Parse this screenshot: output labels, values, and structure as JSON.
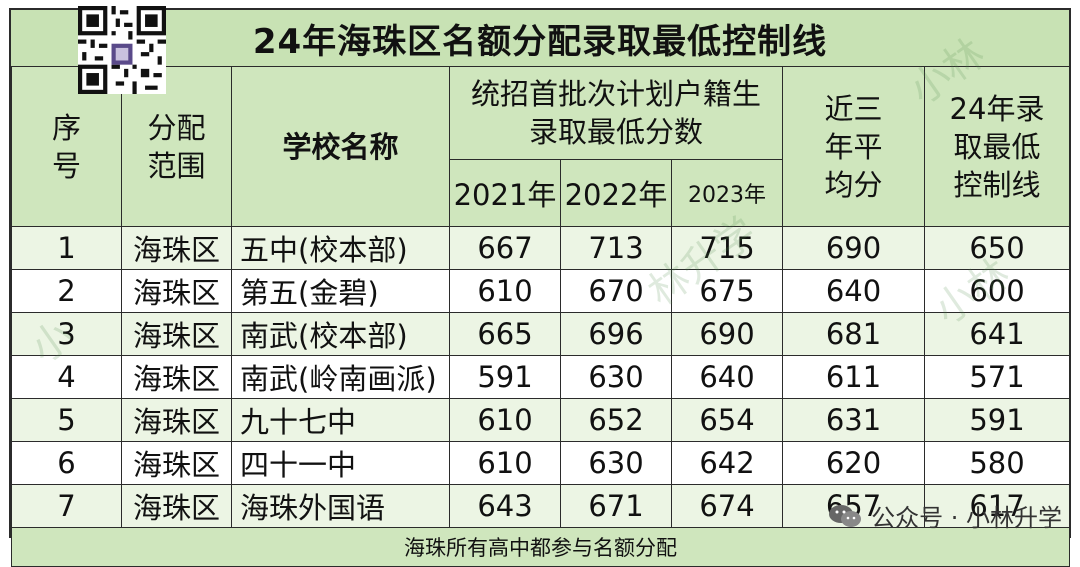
{
  "title": "24年海珠区名额分配录取最低控制线",
  "headers": {
    "index": "序号",
    "scope": "分配范围",
    "school": "学校名称",
    "group": "统招首批次计划户籍生录取最低分数",
    "years": [
      "2021年",
      "2022年",
      "2023年"
    ],
    "avg3": "近三年平均分",
    "line24": "24年录取最低控制线"
  },
  "rows": [
    {
      "no": "1",
      "district": "海珠区",
      "school": "五中(校本部)",
      "y2021": "667",
      "y2022": "713",
      "y2023": "715",
      "avg": "690",
      "line": "650"
    },
    {
      "no": "2",
      "district": "海珠区",
      "school": "第五(金碧)",
      "y2021": "610",
      "y2022": "670",
      "y2023": "675",
      "avg": "640",
      "line": "600"
    },
    {
      "no": "3",
      "district": "海珠区",
      "school": "南武(校本部)",
      "y2021": "665",
      "y2022": "696",
      "y2023": "690",
      "avg": "681",
      "line": "641"
    },
    {
      "no": "4",
      "district": "海珠区",
      "school": "南武(岭南画派)",
      "y2021": "591",
      "y2022": "630",
      "y2023": "640",
      "avg": "611",
      "line": "571"
    },
    {
      "no": "5",
      "district": "海珠区",
      "school": "九十七中",
      "y2021": "610",
      "y2022": "652",
      "y2023": "654",
      "avg": "631",
      "line": "591"
    },
    {
      "no": "6",
      "district": "海珠区",
      "school": "四十一中",
      "y2021": "610",
      "y2022": "630",
      "y2023": "642",
      "avg": "620",
      "line": "580"
    },
    {
      "no": "7",
      "district": "海珠区",
      "school": "海珠外国语",
      "y2021": "643",
      "y2022": "671",
      "y2023": "674",
      "avg": "657",
      "line": "617"
    }
  ],
  "footer": "海珠所有高中都参与名额分配",
  "watermark": "公众号 · 小林升学",
  "colors": {
    "header_bg": "#cfe6bd",
    "title_bg": "#c8e2b4",
    "odd_row": "#ecf5e4"
  }
}
